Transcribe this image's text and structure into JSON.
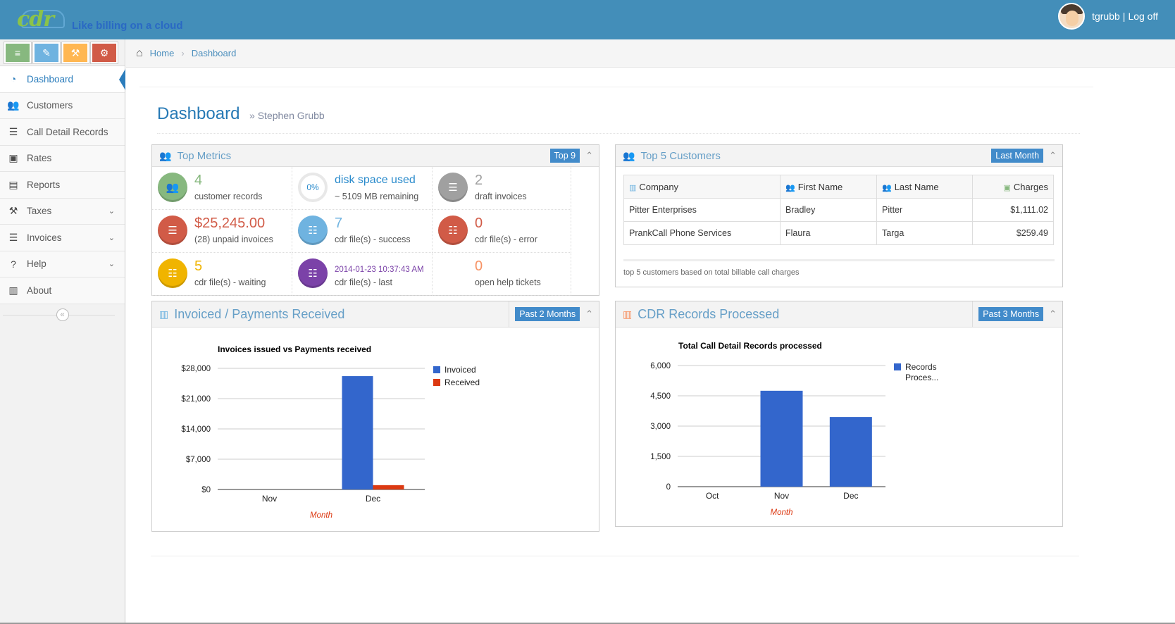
{
  "brand": {
    "logo_text": "cdr",
    "tagline": "Like billing on a cloud"
  },
  "user": {
    "name": "tgrubb",
    "separator": "|",
    "logoff": "Log off"
  },
  "shortcuts": [
    {
      "icon": "list-icon",
      "glyph": "≡",
      "color": "#87b87f"
    },
    {
      "icon": "pencil-icon",
      "glyph": "✎",
      "color": "#6fb3e0"
    },
    {
      "icon": "gavel-icon",
      "glyph": "⚒",
      "color": "#ffb752"
    },
    {
      "icon": "cogs-icon",
      "glyph": "⚙",
      "color": "#d15b47"
    }
  ],
  "nav": [
    {
      "label": "Dashboard",
      "icon": "dashboard-icon",
      "glyph": "◔",
      "active": true
    },
    {
      "label": "Customers",
      "icon": "users-icon",
      "glyph": "👥"
    },
    {
      "label": "Call Detail Records",
      "icon": "list-ol-icon",
      "glyph": "☰"
    },
    {
      "label": "Rates",
      "icon": "money-icon",
      "glyph": "▣"
    },
    {
      "label": "Reports",
      "icon": "file-icon",
      "glyph": "▤"
    },
    {
      "label": "Taxes",
      "icon": "gavel-icon",
      "glyph": "⚒",
      "expandable": true
    },
    {
      "label": "Invoices",
      "icon": "list-icon",
      "glyph": "☰",
      "expandable": true
    },
    {
      "label": "Help",
      "icon": "question-icon",
      "glyph": "?",
      "expandable": true
    },
    {
      "label": "About",
      "icon": "building-icon",
      "glyph": "▥"
    }
  ],
  "breadcrumbs": {
    "home": "Home",
    "current": "Dashboard"
  },
  "page": {
    "title": "Dashboard",
    "subtitle": "» Stephen Grubb"
  },
  "top_metrics": {
    "title": "Top Metrics",
    "badge": "Top 9",
    "items": [
      {
        "value": "4",
        "label": "customer records",
        "color": "#87b87f",
        "icon": "users-icon"
      },
      {
        "value": "disk space used",
        "label": "~ 5109 MB remaining",
        "color": "#2a8bcc",
        "icon": "disk-usage-ring-icon",
        "percent": "0%"
      },
      {
        "value": "2",
        "label": "draft invoices",
        "color": "#a0a0a0",
        "icon": "list-icon"
      },
      {
        "value": "$25,245.00",
        "label": "(28) unpaid invoices",
        "color": "#d15b47",
        "icon": "list-icon"
      },
      {
        "value": "7",
        "label": "cdr file(s) - success",
        "color": "#6fb3e0",
        "icon": "list-ol-icon"
      },
      {
        "value": "0",
        "label": "cdr file(s) - error",
        "color": "#d15b47",
        "icon": "list-ol-icon"
      },
      {
        "value": "5",
        "label": "cdr file(s) - waiting",
        "color": "#f0b400",
        "icon": "list-ol-icon"
      },
      {
        "value": "2014-01-23 10:37:43 AM",
        "label": "cdr file(s) - last",
        "color": "#7b42a8",
        "icon": "list-ol-icon"
      },
      {
        "value": "0",
        "label": "open help tickets",
        "color": "#f79263",
        "icon": "none"
      }
    ]
  },
  "top_customers": {
    "title": "Top 5 Customers",
    "badge": "Last Month",
    "columns": [
      "Company",
      "First Name",
      "Last Name",
      "Charges"
    ],
    "rows": [
      [
        "Pitter Enterprises",
        "Bradley",
        "Pitter",
        "$1,111.02"
      ],
      [
        "PrankCall Phone Services",
        "Flaura",
        "Targa",
        "$259.49"
      ]
    ],
    "footer": "top 5 customers based on total billable call charges"
  },
  "invoiced_widget": {
    "title": "Invoiced / Payments Received",
    "badge": "Past 2 Months"
  },
  "cdr_widget": {
    "title": "CDR Records Processed",
    "badge": "Past 3 Months"
  },
  "chart_data": [
    {
      "type": "bar",
      "title": "Invoices issued vs Payments received",
      "xlabel": "Month",
      "ylabel": "",
      "categories": [
        "Nov",
        "Dec"
      ],
      "series": [
        {
          "name": "Invoiced",
          "values": [
            0,
            26200
          ],
          "color": "#3366cc"
        },
        {
          "name": "Received",
          "values": [
            0,
            1000
          ],
          "color": "#dc3912"
        }
      ],
      "ylim": [
        0,
        28000
      ],
      "yticks": [
        0,
        7000,
        14000,
        21000,
        28000
      ],
      "ytick_labels": [
        "$0",
        "$7,000",
        "$14,000",
        "$21,000",
        "$28,000"
      ],
      "grid": true,
      "legend": "right"
    },
    {
      "type": "bar",
      "title": "Total Call Detail Records processed",
      "xlabel": "Month",
      "ylabel": "",
      "categories": [
        "Oct",
        "Nov",
        "Dec"
      ],
      "series": [
        {
          "name": "Records Proces...",
          "values": [
            0,
            4750,
            3450
          ],
          "color": "#3366cc"
        }
      ],
      "ylim": [
        0,
        6000
      ],
      "yticks": [
        0,
        1500,
        3000,
        4500,
        6000
      ],
      "ytick_labels": [
        "0",
        "1,500",
        "3,000",
        "4,500",
        "6,000"
      ],
      "grid": true,
      "legend": "right"
    }
  ]
}
